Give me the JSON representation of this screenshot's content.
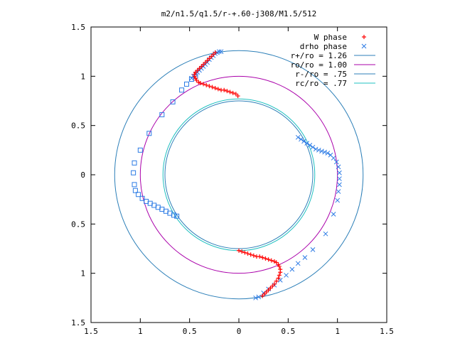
{
  "chart_data": {
    "type": "scatter",
    "title": "m2/n1.5/q1.5/r-+.60-j308/M1.5/512",
    "xlim": [
      -1.5,
      1.5
    ],
    "ylim": [
      -1.5,
      1.5
    ],
    "xticks": [
      -1.5,
      -1,
      -0.5,
      0,
      0.5,
      1,
      1.5
    ],
    "yticks": [
      -1.5,
      -1,
      -0.5,
      0,
      0.5,
      1,
      1.5
    ],
    "xtick_labels": [
      "1.5",
      "1",
      "0.5",
      "0",
      "0.5",
      "1",
      "1.5"
    ],
    "ytick_labels": [
      "1.5",
      "1",
      "0.5",
      "0",
      "0.5",
      "1",
      "1.5"
    ],
    "grid": false,
    "legend_position": "top-right",
    "series": [
      {
        "name": "W phase",
        "kind": "points",
        "marker": "plus",
        "color": "#ff0000",
        "points": [
          [
            -0.24,
            1.24
          ],
          [
            -0.26,
            1.22
          ],
          [
            -0.28,
            1.2
          ],
          [
            -0.3,
            1.18
          ],
          [
            -0.32,
            1.16
          ],
          [
            -0.34,
            1.14
          ],
          [
            -0.36,
            1.12
          ],
          [
            -0.38,
            1.1
          ],
          [
            -0.4,
            1.08
          ],
          [
            -0.42,
            1.06
          ],
          [
            -0.44,
            1.04
          ],
          [
            -0.45,
            1.02
          ],
          [
            -0.45,
            1.0
          ],
          [
            -0.44,
            0.98
          ],
          [
            -0.43,
            0.96
          ],
          [
            -0.41,
            0.94
          ],
          [
            -0.39,
            0.93
          ],
          [
            -0.36,
            0.92
          ],
          [
            -0.33,
            0.91
          ],
          [
            -0.3,
            0.9
          ],
          [
            -0.27,
            0.89
          ],
          [
            -0.24,
            0.88
          ],
          [
            -0.21,
            0.87
          ],
          [
            -0.18,
            0.86
          ],
          [
            -0.15,
            0.86
          ],
          [
            -0.12,
            0.85
          ],
          [
            -0.09,
            0.84
          ],
          [
            -0.06,
            0.83
          ],
          [
            -0.03,
            0.82
          ],
          [
            -0.01,
            0.8
          ],
          [
            0.0,
            -0.77
          ],
          [
            0.03,
            -0.78
          ],
          [
            0.06,
            -0.79
          ],
          [
            0.09,
            -0.8
          ],
          [
            0.12,
            -0.81
          ],
          [
            0.15,
            -0.82
          ],
          [
            0.18,
            -0.83
          ],
          [
            0.21,
            -0.83
          ],
          [
            0.24,
            -0.84
          ],
          [
            0.27,
            -0.85
          ],
          [
            0.3,
            -0.86
          ],
          [
            0.33,
            -0.87
          ],
          [
            0.36,
            -0.88
          ],
          [
            0.38,
            -0.89
          ],
          [
            0.4,
            -0.91
          ],
          [
            0.41,
            -0.93
          ],
          [
            0.42,
            -0.96
          ],
          [
            0.42,
            -0.99
          ],
          [
            0.41,
            -1.02
          ],
          [
            0.4,
            -1.05
          ],
          [
            0.38,
            -1.08
          ],
          [
            0.36,
            -1.11
          ],
          [
            0.34,
            -1.13
          ],
          [
            0.32,
            -1.15
          ],
          [
            0.3,
            -1.17
          ],
          [
            0.28,
            -1.19
          ],
          [
            0.26,
            -1.21
          ],
          [
            0.24,
            -1.23
          ]
        ]
      },
      {
        "name": "drho phase",
        "kind": "points",
        "marker": "cross",
        "color": "#2c7be5",
        "points": [
          [
            -0.18,
            1.25
          ],
          [
            -0.2,
            1.25
          ],
          [
            -0.22,
            1.24
          ],
          [
            -0.24,
            1.23
          ],
          [
            -0.26,
            1.21
          ],
          [
            -0.28,
            1.19
          ],
          [
            -0.3,
            1.17
          ],
          [
            -0.32,
            1.14
          ],
          [
            -0.34,
            1.12
          ],
          [
            -0.36,
            1.1
          ],
          [
            -0.38,
            1.08
          ],
          [
            -0.4,
            1.06
          ],
          [
            -0.42,
            1.04
          ],
          [
            -0.44,
            1.02
          ],
          [
            -0.46,
            1.0
          ],
          [
            -0.48,
            0.98
          ],
          [
            0.6,
            0.38
          ],
          [
            0.63,
            0.36
          ],
          [
            0.66,
            0.34
          ],
          [
            0.69,
            0.32
          ],
          [
            0.72,
            0.3
          ],
          [
            0.75,
            0.28
          ],
          [
            0.78,
            0.26
          ],
          [
            0.81,
            0.25
          ],
          [
            0.84,
            0.24
          ],
          [
            0.87,
            0.23
          ],
          [
            0.9,
            0.22
          ],
          [
            0.93,
            0.2
          ],
          [
            0.96,
            0.17
          ],
          [
            0.99,
            0.13
          ],
          [
            1.01,
            0.08
          ],
          [
            1.02,
            0.02
          ],
          [
            1.02,
            -0.04
          ],
          [
            1.02,
            -0.1
          ],
          [
            1.01,
            -0.17
          ],
          [
            1.0,
            -0.26
          ],
          [
            0.96,
            -0.4
          ],
          [
            0.88,
            -0.6
          ],
          [
            0.75,
            -0.76
          ],
          [
            0.67,
            -0.84
          ],
          [
            0.6,
            -0.9
          ],
          [
            0.54,
            -0.96
          ],
          [
            0.48,
            -1.02
          ],
          [
            0.42,
            -1.07
          ],
          [
            0.36,
            -1.12
          ],
          [
            0.3,
            -1.16
          ],
          [
            0.25,
            -1.2
          ],
          [
            0.2,
            -1.24
          ],
          [
            0.17,
            -1.25
          ]
        ]
      },
      {
        "name": "",
        "kind": "points",
        "marker": "square",
        "color": "#2c7be5",
        "points": [
          [
            -0.44,
            1.0
          ],
          [
            -0.48,
            0.97
          ],
          [
            -0.53,
            0.92
          ],
          [
            -0.58,
            0.86
          ],
          [
            -0.67,
            0.74
          ],
          [
            -0.78,
            0.61
          ],
          [
            -0.91,
            0.42
          ],
          [
            -1.0,
            0.25
          ],
          [
            -1.06,
            0.12
          ],
          [
            -1.07,
            0.02
          ],
          [
            -1.06,
            -0.1
          ],
          [
            -1.05,
            -0.16
          ],
          [
            -1.02,
            -0.2
          ],
          [
            -0.98,
            -0.24
          ],
          [
            -0.94,
            -0.27
          ],
          [
            -0.9,
            -0.29
          ],
          [
            -0.86,
            -0.31
          ],
          [
            -0.82,
            -0.33
          ],
          [
            -0.78,
            -0.35
          ],
          [
            -0.74,
            -0.37
          ],
          [
            -0.7,
            -0.39
          ],
          [
            -0.66,
            -0.41
          ],
          [
            -0.63,
            -0.42
          ]
        ]
      },
      {
        "name": "r+/ro = 1.26",
        "kind": "circle",
        "r": 1.26,
        "color": "#2c7fb8"
      },
      {
        "name": "ro/ro = 1.00",
        "kind": "circle",
        "r": 1.0,
        "color": "#aa00aa"
      },
      {
        "name": "r-/ro = .75",
        "kind": "circle",
        "r": 0.75,
        "color": "#2c7fb8"
      },
      {
        "name": "rc/ro = .77",
        "kind": "circle",
        "r": 0.77,
        "color": "#20c0c0"
      }
    ]
  }
}
